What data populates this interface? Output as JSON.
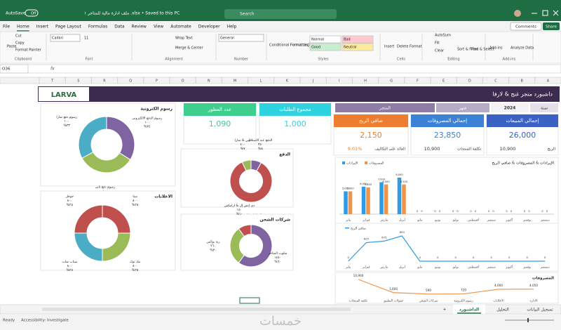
{
  "title_bar": {
    "autosave": "AutoSave",
    "autosave_state": "Off",
    "file_name": "ملف ادارة مالية للمتاجر ١ .xlsx • Saved to this PC",
    "search": "Search"
  },
  "menu": [
    "File",
    "Home",
    "Insert",
    "Page Layout",
    "Formulas",
    "Data",
    "Review",
    "View",
    "Automate",
    "Developer",
    "Help"
  ],
  "menu_right": [
    "Comments",
    "Share"
  ],
  "ribbon_groups": [
    {
      "name": "Clipboard",
      "items": [
        "Paste",
        "Cut",
        "Copy",
        "Format Painter"
      ]
    },
    {
      "name": "Font",
      "items": [
        "Calibri",
        "11"
      ]
    },
    {
      "name": "Alignment",
      "items": [
        "Wrap Text",
        "Merge & Center"
      ]
    },
    {
      "name": "Number",
      "items": [
        "General"
      ]
    },
    {
      "name": "Styles",
      "items": [
        "Conditional Formatting",
        "Format as Table",
        "Normal",
        "Bad",
        "Good",
        "Neutral"
      ]
    },
    {
      "name": "Cells",
      "items": [
        "Insert",
        "Delete",
        "Format"
      ]
    },
    {
      "name": "Editing",
      "items": [
        "AutoSum",
        "Fill",
        "Clear",
        "Sort & Filter",
        "Find & Select"
      ]
    },
    {
      "name": "Add-ins",
      "items": [
        "Add-ins",
        "Analyze Data"
      ]
    }
  ],
  "name_box": "O36",
  "formula_icon": "fx",
  "columns": [
    "T",
    "S",
    "R",
    "Q",
    "P",
    "O",
    "N",
    "M",
    "L",
    "K",
    "J",
    "I",
    "H",
    "G",
    "F",
    "E",
    "D",
    "C",
    "B",
    "A"
  ],
  "dashboard": {
    "logo": "LARVA",
    "title": "داشبورد متجر غنج & لارفا",
    "filters": {
      "year_label": "سنة",
      "year": "2024",
      "month_label": "شهر",
      "store_label": "المتجر"
    },
    "kpis": [
      {
        "title": "إجمالي المبيعات",
        "value": "26,000",
        "sub_label": "الربح",
        "sub_value": "10,900",
        "color": "#3a62c4"
      },
      {
        "title": "إجمالي المصروفات",
        "value": "23,850",
        "sub_label": "تكلفة المنتجات",
        "sub_value": "10,900",
        "color": "#3b82d6"
      },
      {
        "title": "صافي الربح",
        "value": "2,150",
        "sub_label": "العائد على التكاليف",
        "sub_value": "9.01%",
        "color": "#ee7d2f"
      },
      {
        "title": "مجموع الطلبات",
        "value": "1,000",
        "color": "#2fd3e0"
      },
      {
        "title": "عدد العطور",
        "value": "1,090",
        "color": "#3ecf8e"
      }
    ],
    "donuts": [
      {
        "title": "رسوم الكترونية",
        "slices": [
          {
            "name": "رسوم الدفع الالكتروني",
            "amount": "١٠٠",
            "percent": 34,
            "percent_label": "%٣٤",
            "color": "#8064a2"
          },
          {
            "name": "رسوم دفع تابي",
            "amount": "١٠٠",
            "percent": 33,
            "percent_label": "%٣٣",
            "color": "#9bbb59"
          },
          {
            "name": "رسوم دفع تمارا",
            "amount": "١٠٠",
            "percent": 33,
            "percent_label": "%٣٣",
            "color": "#4bacc6"
          }
        ]
      },
      {
        "title": "الاعلانات",
        "slices": [
          {
            "name": "ميتا",
            "amount": "٨٠٠",
            "percent": 25,
            "percent_label": "%٢٥",
            "color": "#c0504d"
          },
          {
            "name": "تيك توك",
            "amount": "٨٠٠",
            "percent": 25,
            "percent_label": "%٢٥",
            "color": "#9bbb59"
          },
          {
            "name": "سناب شات",
            "amount": "٨٠٠",
            "percent": 25,
            "percent_label": "%٢٥",
            "color": "#4bacc6"
          },
          {
            "name": "جوجل",
            "amount": "٨٠٠",
            "percent": 25,
            "percent_label": "%٢٥",
            "color": "#c0504d"
          }
        ]
      },
      {
        "title": "الدفع",
        "slices": [
          {
            "name": "الدفع عند الاستلام",
            "amount": "٢٥٠",
            "percent": 8,
            "percent_label": "%٨",
            "color": "#8064a2"
          },
          {
            "name": "البطاقات الائتمانية",
            "amount": "٤٠٠٠",
            "percent": 85,
            "percent_label": "%٨٥",
            "color": "#c0504d"
          },
          {
            "name": "تابي & تمارا",
            "amount": "٤٠٠",
            "percent": 7,
            "percent_label": "%٧",
            "color": "#9bbb59"
          }
        ]
      },
      {
        "title": "شركات الشحن",
        "slices": [
          {
            "name": "متلوب المتاجر",
            "amount": "١٤٥٠",
            "percent": 60,
            "percent_label": "%٦٠",
            "color": "#8064a2"
          },
          {
            "name": "رية بوكس",
            "amount": "٢٦٠",
            "percent": 30,
            "percent_label": "%٣٠",
            "color": "#9bbb59"
          },
          {
            "name": "دي إتش إل & ارامكس",
            "amount": "١٥٠",
            "percent": 10,
            "percent_label": "%١٠",
            "color": "#c0504d"
          }
        ]
      }
    ],
    "bar_chart": {
      "type": "bar",
      "title": "الإيرادات & المصروفات & صافي الربح",
      "categories": [
        "يناير",
        "فبراير",
        "مارس",
        "أبريل",
        "مايو",
        "يونيو",
        "يوليو",
        "أغسطس",
        "سبتمبر",
        "أكتوبر",
        "نوفمبر",
        "ديسمبر"
      ],
      "series": [
        {
          "name": "الإيرادات",
          "color": "#2e9be6",
          "values": [
            5000,
            6000,
            7000,
            8000,
            0,
            0,
            0,
            0,
            0,
            0,
            0,
            0
          ],
          "value_labels": [
            "5,000",
            "6,000",
            "7,000",
            "8,000",
            "0",
            "0",
            "0",
            "0",
            "0",
            "0",
            "0",
            "0"
          ]
        },
        {
          "name": "المصروفات",
          "color": "#f0944a",
          "values": [
            5000,
            5850,
            6500,
            6500,
            0,
            0,
            0,
            0,
            0,
            0,
            0,
            0
          ],
          "value_labels": [
            "5,000",
            "5,850",
            "6,500",
            "6,500",
            "0",
            "0",
            "0",
            "0",
            "0",
            "0",
            "0",
            "0"
          ]
        }
      ]
    },
    "line_chart": {
      "type": "line",
      "series": [
        {
          "name": "صافي الربح",
          "color": "#2e9be6",
          "values": [
            0,
            625,
            675,
            850,
            0,
            0,
            0,
            0,
            0,
            0,
            0,
            0
          ]
        }
      ]
    },
    "expense_chart": {
      "type": "line",
      "title": "المصروفات",
      "categories": [
        "تكلفة المنتجات",
        "عمولات التطبيق",
        "شركات الشحن",
        "رسوم الكترونية",
        "الاعلانات",
        "الادارة"
      ],
      "color": "#f0944a",
      "values": [
        10900,
        1600,
        590,
        720,
        4000,
        4050
      ],
      "value_labels": [
        "10,900",
        "1,600",
        "590",
        "720",
        "4,000",
        "4,050"
      ]
    }
  },
  "sheet_tabs": [
    "تسجيل البيانات",
    "التحليل",
    "الداشبورد",
    "+"
  ],
  "status": {
    "ready": "Ready",
    "accessibility": "Accessibility: Investigate"
  },
  "watermark": "خمسات"
}
